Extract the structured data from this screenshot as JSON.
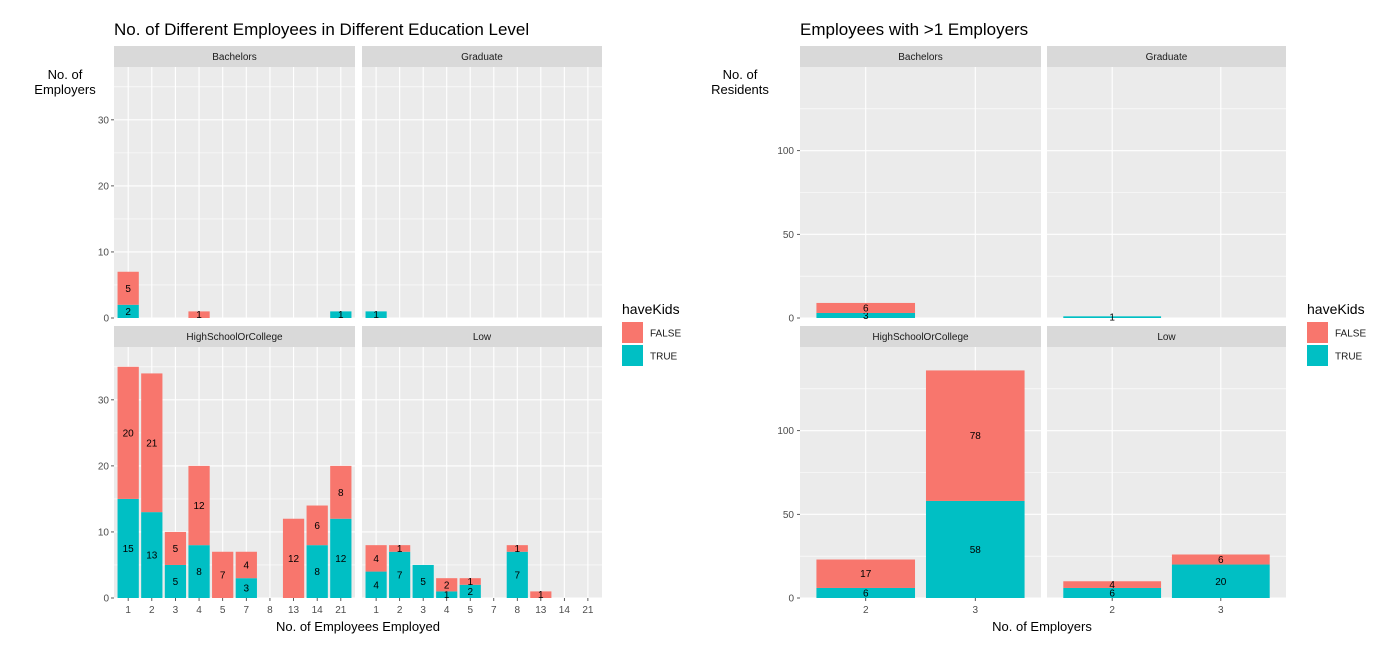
{
  "colors": {
    "FALSE": "#F8766D",
    "TRUE": "#00BFC4",
    "panel_bg": "#EBEBEB",
    "strip_bg": "#D9D9D9",
    "grid": "#FFFFFF"
  },
  "chart_data": [
    {
      "type": "bar",
      "stacked": true,
      "title": "No. of Different Employees in Different Education Level",
      "xlabel": "No. of Employees Employed",
      "ylabel": "No. of\nEmployers",
      "ylim": [
        0,
        38
      ],
      "yticks": [
        0,
        10,
        20,
        30
      ],
      "legend": {
        "title": "haveKids",
        "entries": [
          "FALSE",
          "TRUE"
        ],
        "position": "right"
      },
      "grid": true,
      "facets": [
        {
          "name": "Bachelors",
          "categories": [
            "1",
            "2",
            "3",
            "4",
            "5",
            "7",
            "8",
            "13",
            "14",
            "21"
          ],
          "series": [
            {
              "name": "TRUE",
              "values": [
                2,
                0,
                0,
                0,
                0,
                0,
                0,
                0,
                0,
                1
              ]
            },
            {
              "name": "FALSE",
              "values": [
                5,
                0,
                0,
                1,
                0,
                0,
                0,
                0,
                0,
                0
              ]
            }
          ]
        },
        {
          "name": "Graduate",
          "categories": [
            "1",
            "2",
            "3",
            "4",
            "5",
            "7",
            "8",
            "13",
            "14",
            "21"
          ],
          "series": [
            {
              "name": "TRUE",
              "values": [
                1,
                0,
                0,
                0,
                0,
                0,
                0,
                0,
                0,
                0
              ]
            },
            {
              "name": "FALSE",
              "values": [
                0,
                0,
                0,
                0,
                0,
                0,
                0,
                0,
                0,
                0
              ]
            }
          ]
        },
        {
          "name": "HighSchoolOrCollege",
          "categories": [
            "1",
            "2",
            "3",
            "4",
            "5",
            "7",
            "8",
            "13",
            "14",
            "21"
          ],
          "series": [
            {
              "name": "TRUE",
              "values": [
                15,
                13,
                5,
                8,
                0,
                3,
                0,
                0,
                8,
                12
              ]
            },
            {
              "name": "FALSE",
              "values": [
                20,
                21,
                5,
                12,
                7,
                4,
                0,
                12,
                6,
                8
              ]
            }
          ]
        },
        {
          "name": "Low",
          "categories": [
            "1",
            "2",
            "3",
            "4",
            "5",
            "7",
            "8",
            "13",
            "14",
            "21"
          ],
          "series": [
            {
              "name": "TRUE",
              "values": [
                4,
                7,
                5,
                1,
                2,
                0,
                7,
                0,
                0,
                0
              ]
            },
            {
              "name": "FALSE",
              "values": [
                4,
                1,
                0,
                2,
                1,
                0,
                1,
                1,
                0,
                0
              ]
            }
          ]
        }
      ]
    },
    {
      "type": "bar",
      "stacked": true,
      "title": "Employees with >1 Employers",
      "xlabel": "No. of Employers",
      "ylabel": "No. of\nResidents",
      "ylim": [
        0,
        150
      ],
      "yticks": [
        0,
        50,
        100
      ],
      "legend": {
        "title": "haveKids",
        "entries": [
          "FALSE",
          "TRUE"
        ],
        "position": "right"
      },
      "grid": true,
      "facets": [
        {
          "name": "Bachelors",
          "categories": [
            "2",
            "3"
          ],
          "series": [
            {
              "name": "TRUE",
              "values": [
                3,
                0
              ]
            },
            {
              "name": "FALSE",
              "values": [
                6,
                0
              ]
            }
          ]
        },
        {
          "name": "Graduate",
          "categories": [
            "2",
            "3"
          ],
          "series": [
            {
              "name": "TRUE",
              "values": [
                1,
                0
              ]
            },
            {
              "name": "FALSE",
              "values": [
                0,
                0
              ]
            }
          ]
        },
        {
          "name": "HighSchoolOrCollege",
          "categories": [
            "2",
            "3"
          ],
          "series": [
            {
              "name": "TRUE",
              "values": [
                6,
                58
              ]
            },
            {
              "name": "FALSE",
              "values": [
                17,
                78
              ]
            }
          ]
        },
        {
          "name": "Low",
          "categories": [
            "2",
            "3"
          ],
          "series": [
            {
              "name": "TRUE",
              "values": [
                6,
                20
              ]
            },
            {
              "name": "FALSE",
              "values": [
                4,
                6
              ]
            }
          ]
        }
      ]
    }
  ]
}
